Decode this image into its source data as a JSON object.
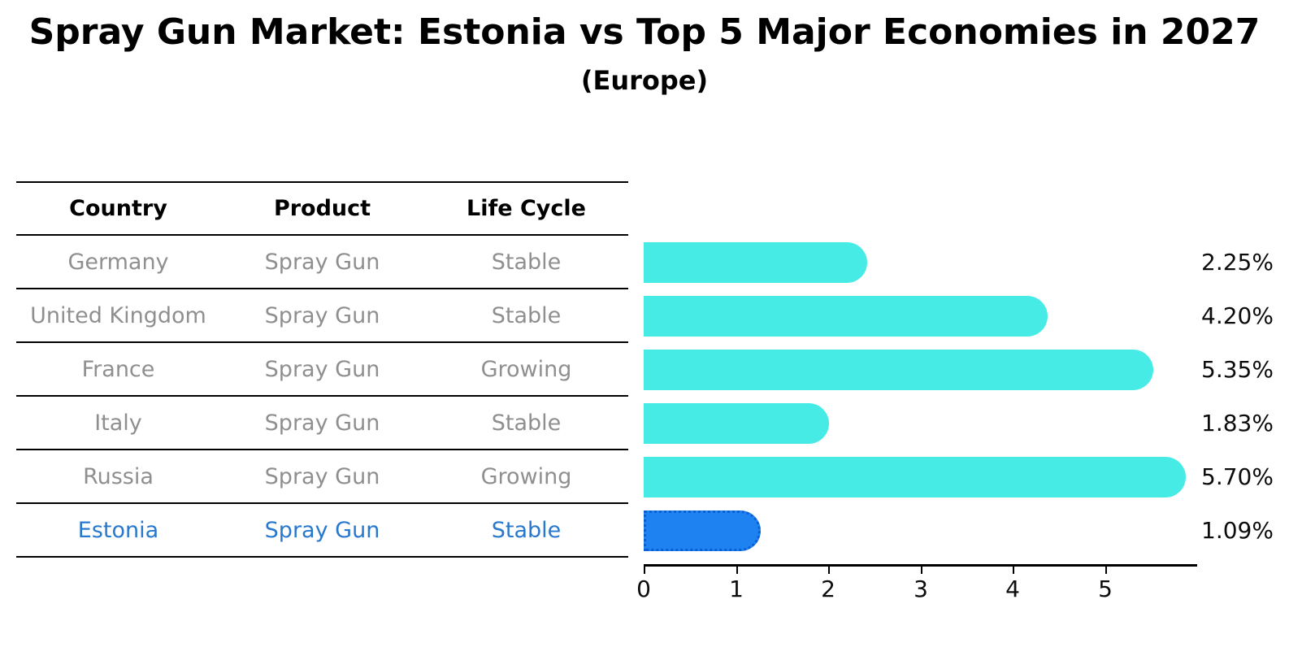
{
  "title": "Spray Gun Market: Estonia vs Top 5 Major Economies in 2027",
  "subtitle": "(Europe)",
  "table": {
    "headers": [
      "Country",
      "Product",
      "Life Cycle"
    ],
    "rows": [
      {
        "country": "Germany",
        "product": "Spray Gun",
        "life_cycle": "Stable",
        "highlight": false
      },
      {
        "country": "United Kingdom",
        "product": "Spray Gun",
        "life_cycle": "Stable",
        "highlight": false
      },
      {
        "country": "France",
        "product": "Spray Gun",
        "life_cycle": "Growing",
        "highlight": false
      },
      {
        "country": "Italy",
        "product": "Spray Gun",
        "life_cycle": "Stable",
        "highlight": false
      },
      {
        "country": "Russia",
        "product": "Spray Gun",
        "life_cycle": "Growing",
        "highlight": false
      },
      {
        "country": "Estonia",
        "product": "Spray Gun",
        "life_cycle": "Stable",
        "highlight": true
      }
    ]
  },
  "chart_data": {
    "type": "bar",
    "orientation": "horizontal",
    "title": "Spray Gun Market: Estonia vs Top 5 Major Economies in 2027 (Europe)",
    "categories": [
      "Germany",
      "United Kingdom",
      "France",
      "Italy",
      "Russia",
      "Estonia"
    ],
    "values": [
      2.25,
      4.2,
      5.35,
      1.83,
      5.7,
      1.09
    ],
    "value_labels": [
      "2.25%",
      "4.20%",
      "5.35%",
      "1.83%",
      "5.70%",
      "1.09%"
    ],
    "unit": "percent",
    "xticks": [
      0,
      1,
      2,
      3,
      4,
      5
    ],
    "xlim": [
      0,
      6
    ],
    "grid": false,
    "legend": false,
    "highlight_index": 5,
    "bar_color": "#47EBE6",
    "highlight_bar_color": "#1E82F0"
  },
  "colors": {
    "bar_cyan": "#47EBE6",
    "bar_blue": "#1E82F0",
    "highlight_text": "#2878ce",
    "row_text": "#8f8f8f",
    "axis_text": "#0c0c0c"
  }
}
